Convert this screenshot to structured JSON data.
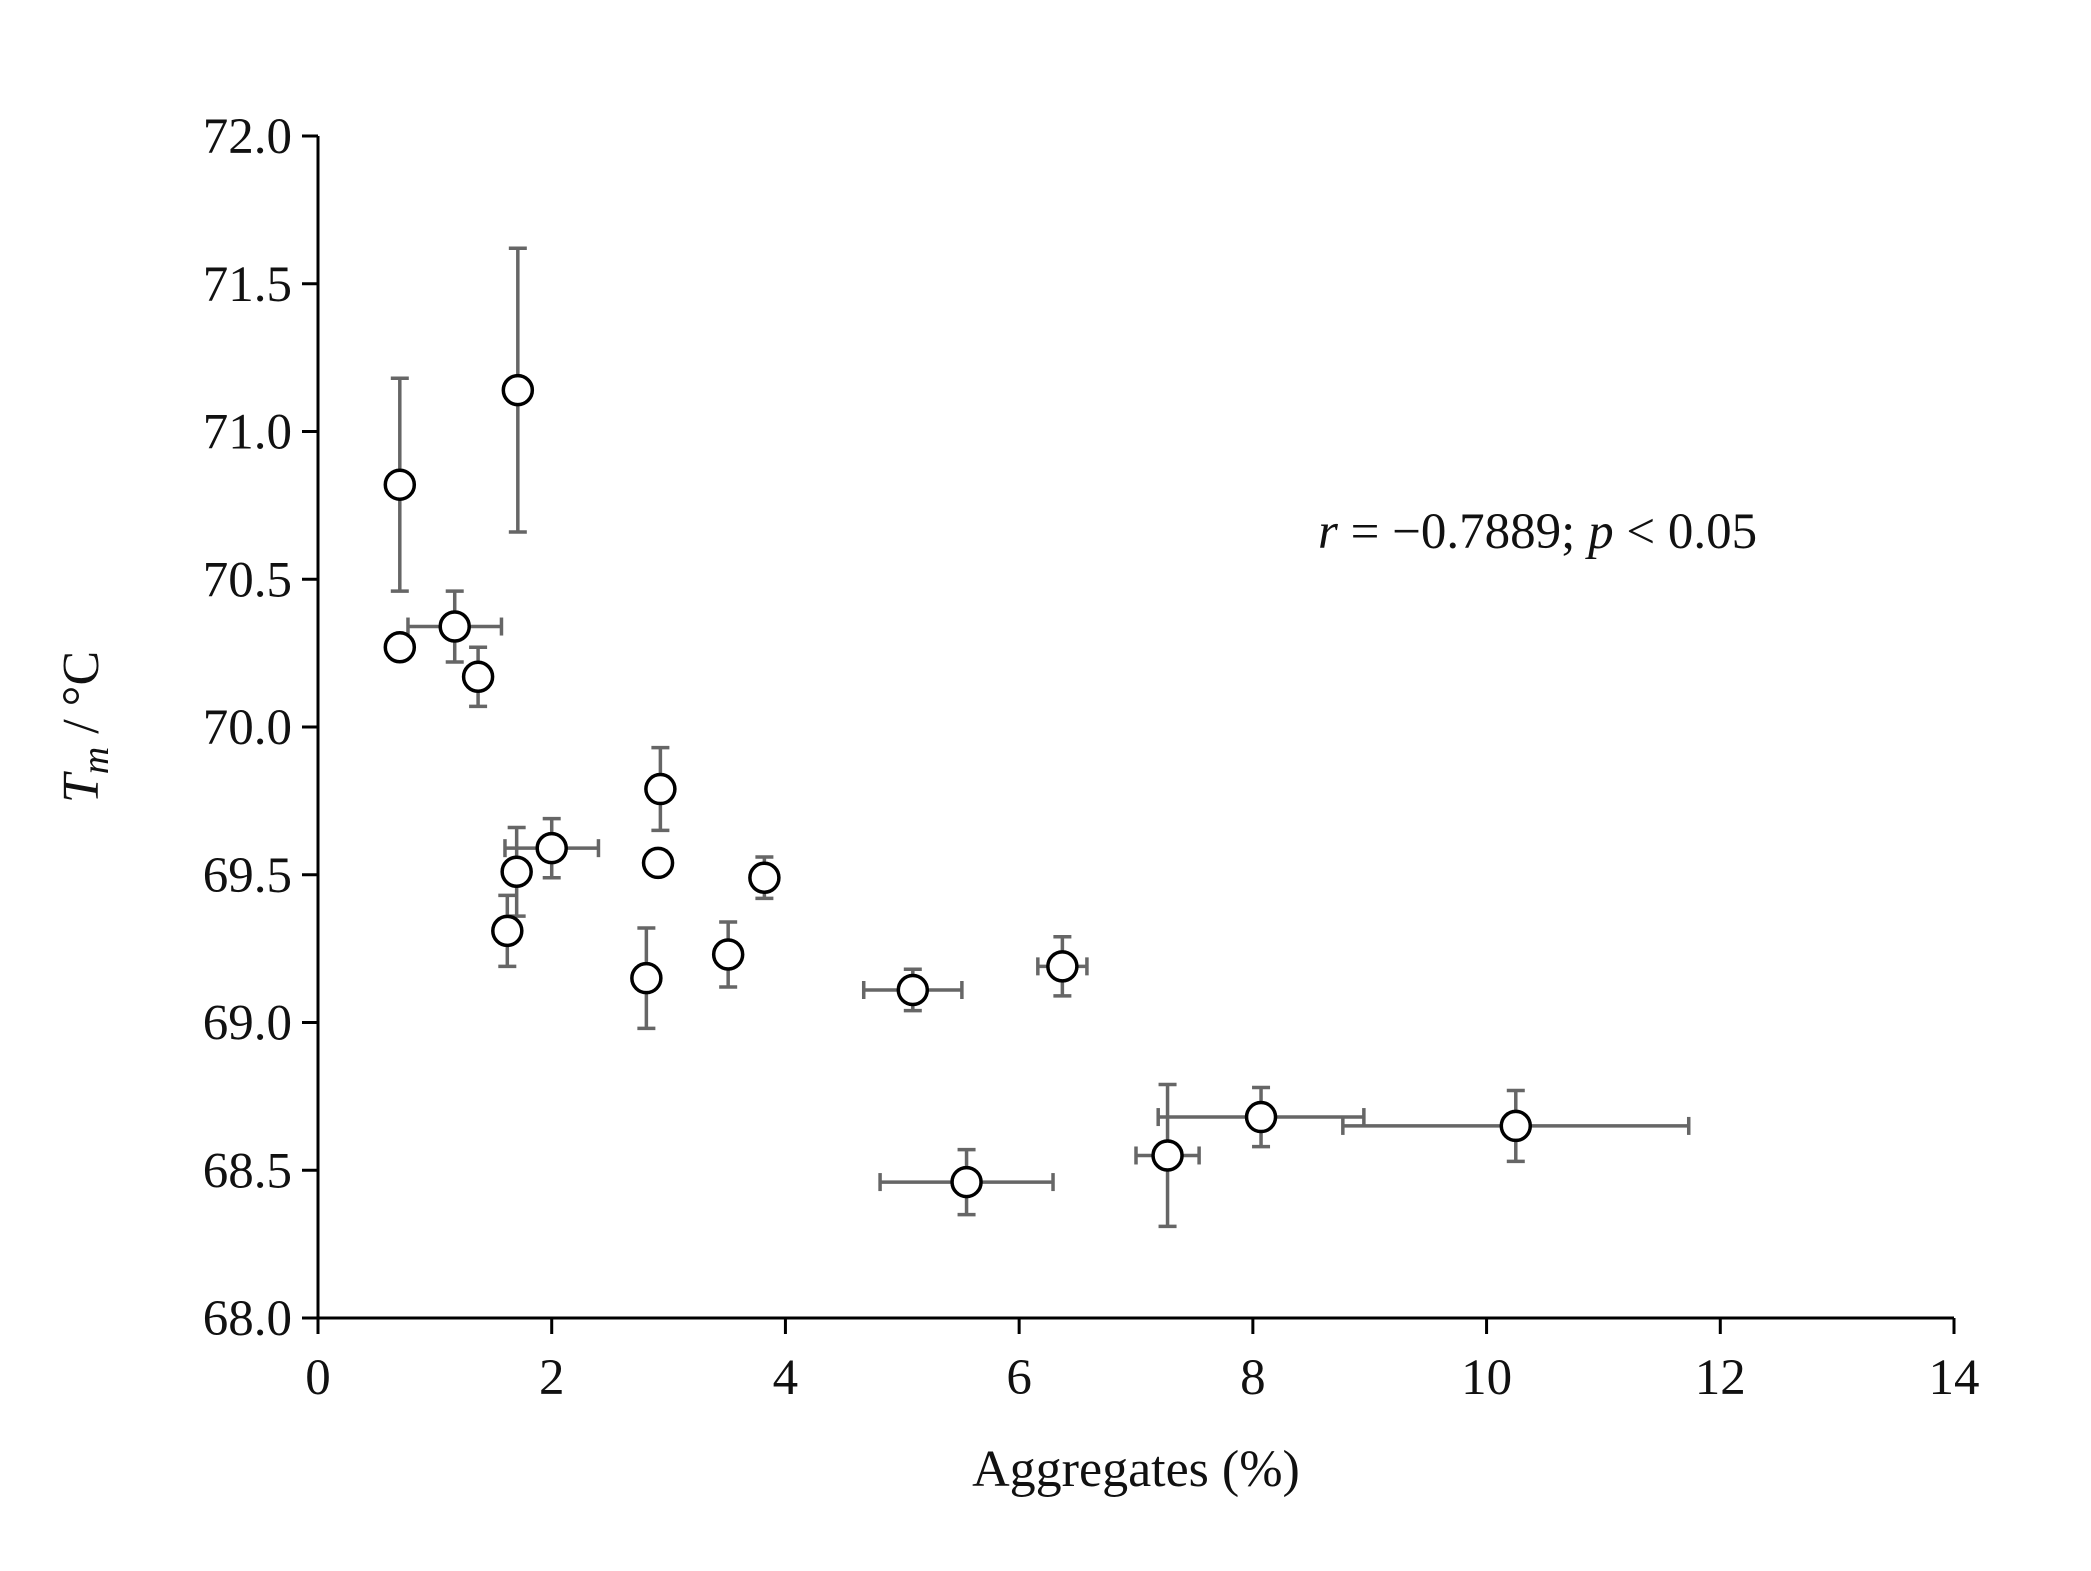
{
  "chart_data": {
    "type": "scatter",
    "title": "",
    "xlabel": "Aggregates (%)",
    "ylabel": {
      "symbol": "T",
      "subscript": "m",
      "unit": " / °C"
    },
    "xlim": [
      0,
      14
    ],
    "ylim": [
      68.0,
      72.0
    ],
    "x_ticks": [
      0,
      2,
      4,
      6,
      8,
      10,
      12,
      14
    ],
    "x_tick_labels": [
      "0",
      "2",
      "4",
      "6",
      "8",
      "10",
      "12",
      "14"
    ],
    "y_ticks": [
      68.0,
      68.5,
      69.0,
      69.5,
      70.0,
      70.5,
      71.0,
      71.5,
      72.0
    ],
    "y_tick_labels": [
      "68.0",
      "68.5",
      "69.0",
      "69.5",
      "70.0",
      "70.5",
      "71.0",
      "71.5",
      "72.0"
    ],
    "grid": false,
    "legend": "none",
    "annotation": {
      "r_symbol": "r",
      "r_text": " = −0.7889; ",
      "p_symbol": "p",
      "p_text": " < 0.05"
    },
    "points": [
      {
        "x": 0.7,
        "y": 70.82,
        "xerr": 0.0,
        "yerr": 0.36
      },
      {
        "x": 0.7,
        "y": 70.27,
        "xerr": 0.0,
        "yerr": 0.0
      },
      {
        "x": 1.17,
        "y": 70.34,
        "xerr": 0.4,
        "yerr": 0.12
      },
      {
        "x": 1.37,
        "y": 70.17,
        "xerr": 0.0,
        "yerr": 0.1
      },
      {
        "x": 1.71,
        "y": 71.14,
        "xerr": 0.0,
        "yerr": 0.48
      },
      {
        "x": 1.7,
        "y": 69.51,
        "xerr": 0.07,
        "yerr": 0.15
      },
      {
        "x": 1.62,
        "y": 69.31,
        "xerr": 0.0,
        "yerr": 0.12
      },
      {
        "x": 2.0,
        "y": 69.59,
        "xerr": 0.4,
        "yerr": 0.1
      },
      {
        "x": 2.93,
        "y": 69.79,
        "xerr": 0.0,
        "yerr": 0.14
      },
      {
        "x": 2.91,
        "y": 69.54,
        "xerr": 0.0,
        "yerr": 0.0
      },
      {
        "x": 2.81,
        "y": 69.15,
        "xerr": 0.0,
        "yerr": 0.17
      },
      {
        "x": 3.51,
        "y": 69.23,
        "xerr": 0.0,
        "yerr": 0.11
      },
      {
        "x": 3.82,
        "y": 69.49,
        "xerr": 0.0,
        "yerr": 0.07
      },
      {
        "x": 5.09,
        "y": 69.11,
        "xerr": 0.42,
        "yerr": 0.07
      },
      {
        "x": 6.37,
        "y": 69.19,
        "xerr": 0.21,
        "yerr": 0.1
      },
      {
        "x": 5.55,
        "y": 68.46,
        "xerr": 0.74,
        "yerr": 0.11
      },
      {
        "x": 7.27,
        "y": 68.55,
        "xerr": 0.27,
        "yerr": 0.24
      },
      {
        "x": 8.07,
        "y": 68.68,
        "xerr": 0.88,
        "yerr": 0.1
      },
      {
        "x": 10.25,
        "y": 68.65,
        "xerr": 1.48,
        "yerr": 0.12
      }
    ]
  }
}
